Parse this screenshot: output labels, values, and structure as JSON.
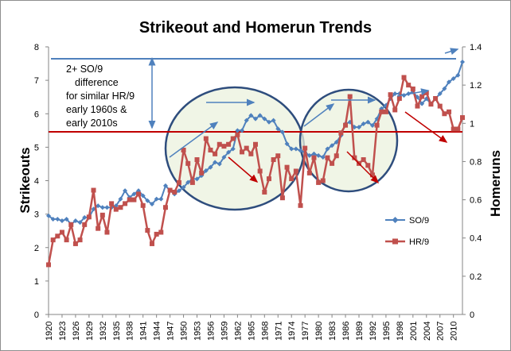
{
  "chart_data": {
    "type": "line",
    "title": "Strikeout and Homerun Trends",
    "ylabel": "Strikeouts",
    "y2label": "Homeruns",
    "ylim": [
      0,
      8
    ],
    "y2lim": [
      0,
      1.4
    ],
    "yticks": [
      "0",
      "1",
      "2",
      "3",
      "4",
      "5",
      "6",
      "7",
      "8"
    ],
    "y2ticks": [
      "0",
      "0.2",
      "0.4",
      "0.6",
      "0.8",
      "1",
      "1.2",
      "1.4"
    ],
    "xlim": [
      1920,
      2012
    ],
    "xticks": [
      "1920",
      "1923",
      "1926",
      "1929",
      "1932",
      "1935",
      "1938",
      "1941",
      "1944",
      "1947",
      "1950",
      "1953",
      "1956",
      "1959",
      "1962",
      "1965",
      "1968",
      "1971",
      "1974",
      "1977",
      "1980",
      "1983",
      "1986",
      "1989",
      "1992",
      "1995",
      "1998",
      "2001",
      "2004",
      "2007",
      "2010"
    ],
    "grid": false,
    "legend_position": "right",
    "annotation": [
      "2+ SO/9",
      "difference",
      "for similar HR/9",
      "early 1960s &",
      "early 2010s"
    ],
    "series": [
      {
        "name": "SO/9",
        "axis": "left",
        "color": "#4f81bd",
        "x": [
          1920,
          1921,
          1922,
          1923,
          1924,
          1925,
          1926,
          1927,
          1928,
          1929,
          1930,
          1931,
          1932,
          1933,
          1934,
          1935,
          1936,
          1937,
          1938,
          1939,
          1940,
          1941,
          1942,
          1943,
          1944,
          1945,
          1946,
          1947,
          1948,
          1949,
          1950,
          1951,
          1952,
          1953,
          1954,
          1955,
          1956,
          1957,
          1958,
          1959,
          1960,
          1961,
          1962,
          1963,
          1964,
          1965,
          1966,
          1967,
          1968,
          1969,
          1970,
          1971,
          1972,
          1973,
          1974,
          1975,
          1976,
          1977,
          1978,
          1979,
          1980,
          1981,
          1982,
          1983,
          1984,
          1985,
          1986,
          1987,
          1988,
          1989,
          1990,
          1991,
          1992,
          1993,
          1994,
          1995,
          1996,
          1997,
          1998,
          1999,
          2000,
          2001,
          2002,
          2003,
          2004,
          2005,
          2006,
          2007,
          2008,
          2009,
          2010,
          2011,
          2012
        ],
        "y": [
          2.95,
          2.85,
          2.85,
          2.8,
          2.85,
          2.7,
          2.8,
          2.75,
          2.9,
          2.9,
          3.15,
          3.25,
          3.2,
          3.2,
          3.2,
          3.25,
          3.45,
          3.7,
          3.5,
          3.6,
          3.7,
          3.55,
          3.4,
          3.3,
          3.45,
          3.45,
          3.85,
          3.7,
          3.6,
          3.7,
          3.8,
          3.95,
          4.05,
          4.05,
          4.15,
          4.3,
          4.4,
          4.55,
          4.5,
          4.7,
          4.85,
          4.95,
          5.5,
          5.5,
          5.8,
          5.95,
          5.85,
          5.95,
          5.85,
          5.75,
          5.8,
          5.55,
          5.45,
          5.1,
          4.95,
          4.95,
          4.9,
          4.85,
          4.75,
          4.8,
          4.75,
          4.7,
          4.95,
          5.05,
          5.15,
          5.35,
          5.7,
          5.75,
          5.6,
          5.6,
          5.7,
          5.75,
          5.65,
          5.85,
          6.15,
          6.25,
          6.45,
          6.6,
          6.6,
          6.55,
          6.6,
          6.65,
          6.5,
          6.3,
          6.45,
          6.3,
          6.45,
          6.6,
          6.75,
          6.95,
          7.05,
          7.15,
          7.55
        ]
      },
      {
        "name": "HR/9",
        "axis": "right",
        "color": "#c0504d",
        "x": [
          1920,
          1921,
          1922,
          1923,
          1924,
          1925,
          1926,
          1927,
          1928,
          1929,
          1930,
          1931,
          1932,
          1933,
          1934,
          1935,
          1936,
          1937,
          1938,
          1939,
          1940,
          1941,
          1942,
          1943,
          1944,
          1945,
          1946,
          1947,
          1948,
          1949,
          1950,
          1951,
          1952,
          1953,
          1954,
          1955,
          1956,
          1957,
          1958,
          1959,
          1960,
          1961,
          1962,
          1963,
          1964,
          1965,
          1966,
          1967,
          1968,
          1969,
          1970,
          1971,
          1972,
          1973,
          1974,
          1975,
          1976,
          1977,
          1978,
          1979,
          1980,
          1981,
          1982,
          1983,
          1984,
          1985,
          1986,
          1987,
          1988,
          1989,
          1990,
          1991,
          1992,
          1993,
          1994,
          1995,
          1996,
          1997,
          1998,
          1999,
          2000,
          2001,
          2002,
          2003,
          2004,
          2005,
          2006,
          2007,
          2008,
          2009,
          2010,
          2011,
          2012
        ],
        "y": [
          0.26,
          0.39,
          0.41,
          0.43,
          0.39,
          0.47,
          0.37,
          0.39,
          0.47,
          0.51,
          0.65,
          0.45,
          0.52,
          0.43,
          0.58,
          0.55,
          0.56,
          0.58,
          0.6,
          0.6,
          0.63,
          0.57,
          0.44,
          0.37,
          0.42,
          0.43,
          0.56,
          0.65,
          0.64,
          0.69,
          0.86,
          0.79,
          0.69,
          0.81,
          0.74,
          0.92,
          0.86,
          0.84,
          0.89,
          0.88,
          0.89,
          0.92,
          0.94,
          0.85,
          0.87,
          0.84,
          0.89,
          0.75,
          0.64,
          0.71,
          0.81,
          0.83,
          0.61,
          0.77,
          0.71,
          0.75,
          0.57,
          0.87,
          0.74,
          0.82,
          0.69,
          0.7,
          0.82,
          0.79,
          0.83,
          0.95,
          0.99,
          1.14,
          0.82,
          0.79,
          0.81,
          0.78,
          0.73,
          0.99,
          1.06,
          1.06,
          1.15,
          1.07,
          1.13,
          1.24,
          1.2,
          1.18,
          1.09,
          1.14,
          1.16,
          1.1,
          1.13,
          1.09,
          1.05,
          1.06,
          0.97,
          0.97,
          1.03
        ]
      }
    ]
  }
}
